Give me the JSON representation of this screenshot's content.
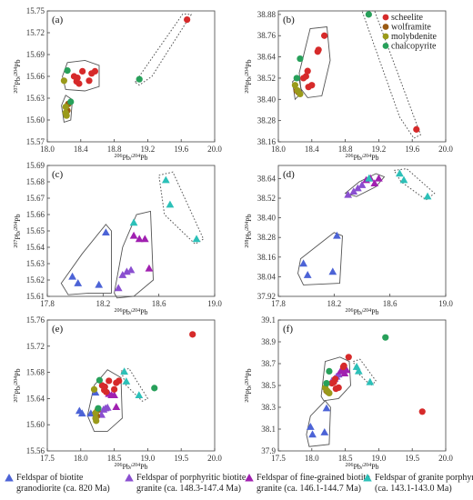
{
  "colors": {
    "scheelite": "#d62a2a",
    "wolframite": "#9a5a12",
    "molybdenite": "#9a9a1a",
    "chalcopyrite": "#27a05a",
    "biotite_granodiorite": "#4c63d6",
    "porphyritic_biotite_granite": "#8a4fd0",
    "fine_grained_biotite_granite": "#a020b0",
    "granite_porphyry": "#2cc0b8"
  },
  "legend_bottom": [
    {
      "key": "biotite_granodiorite",
      "line1": "Feldspar of biotite",
      "line2": "granodiorite (ca. 820 Ma)"
    },
    {
      "key": "porphyritic_biotite_granite",
      "line1": "Feldspar of porphyritic biotite",
      "line2": "granite (ca. 148.3-147.4 Ma)"
    },
    {
      "key": "fine_grained_biotite_granite",
      "line1": "Feldspar of fine-grained biotite",
      "line2": "granite (ca. 146.1-144.7 Ma)"
    },
    {
      "key": "granite_porphyry",
      "line1": "Feldspar of granite  porphyry",
      "line2": "(ca. 143.1-143.0 Ma)"
    }
  ],
  "chart_data": [
    {
      "panel": "(a)",
      "type": "scatter",
      "xlabel": "206Pb/204Pb",
      "ylabel": "207Pb/204Pb",
      "xlim": [
        18.0,
        20.0
      ],
      "ylim": [
        15.57,
        15.75
      ],
      "xticks": [
        "18.0",
        "18.4",
        "18.8",
        "19.2",
        "19.6",
        "20.0"
      ],
      "yticks": [
        "15.57",
        "15.60",
        "15.63",
        "15.66",
        "15.69",
        "15.72",
        "15.75"
      ],
      "series": [
        {
          "name": "scheelite",
          "marker": "circle",
          "x": [
            18.32,
            18.36,
            18.42,
            18.53,
            18.57,
            18.5,
            18.35,
            18.38,
            19.67
          ],
          "y": [
            15.66,
            15.658,
            15.667,
            15.664,
            15.667,
            15.654,
            15.653,
            15.65,
            15.738
          ]
        },
        {
          "name": "wolframite",
          "marker": "circle",
          "x": [
            18.25,
            18.24
          ],
          "y": [
            15.622,
            15.613
          ]
        },
        {
          "name": "molybdenite",
          "marker": "circle",
          "x": [
            18.2,
            18.22,
            18.22,
            18.23
          ],
          "y": [
            15.654,
            15.618,
            15.61,
            15.606
          ]
        },
        {
          "name": "chalcopyrite",
          "marker": "circle",
          "x": [
            18.24,
            18.28,
            19.1
          ],
          "y": [
            15.668,
            15.625,
            15.656
          ]
        }
      ]
    },
    {
      "panel": "(b)",
      "type": "scatter",
      "xlabel": "206Pb/204Pb",
      "ylabel": "208Pb/204Pb",
      "xlim": [
        18.0,
        20.0
      ],
      "ylim": [
        38.16,
        38.9
      ],
      "xticks": [
        "18.0",
        "18.4",
        "18.8",
        "19.2",
        "19.6",
        "20.0"
      ],
      "yticks": [
        "38.16",
        "38.28",
        "38.40",
        "38.52",
        "38.64",
        "38.76",
        "38.88"
      ],
      "legend": [
        "scheelite",
        "wolframite",
        "molybdenite",
        "chalcopyrite"
      ],
      "series": [
        {
          "name": "scheelite",
          "marker": "circle",
          "x": [
            18.55,
            18.48,
            18.47,
            18.35,
            18.33,
            18.36,
            18.3,
            18.4,
            19.65
          ],
          "y": [
            38.76,
            38.68,
            38.67,
            38.56,
            38.53,
            38.47,
            38.52,
            38.48,
            38.23
          ]
        },
        {
          "name": "wolframite",
          "marker": "circle",
          "x": [
            18.22,
            18.24
          ],
          "y": [
            38.45,
            38.44
          ]
        },
        {
          "name": "molybdenite",
          "marker": "circle",
          "x": [
            18.2,
            18.23,
            18.26
          ],
          "y": [
            38.48,
            38.45,
            38.43
          ]
        },
        {
          "name": "chalcopyrite",
          "marker": "circle",
          "x": [
            18.22,
            18.26,
            19.08
          ],
          "y": [
            38.52,
            38.63,
            38.88
          ]
        }
      ]
    },
    {
      "panel": "(c)",
      "type": "scatter",
      "xlabel": "206Pb/204Pb",
      "ylabel": "207Pb/204Pb",
      "xlim": [
        17.8,
        19.0
      ],
      "ylim": [
        15.61,
        15.69
      ],
      "xticks": [
        "17.8",
        "18.2",
        "18.6",
        "19.0"
      ],
      "yticks": [
        "15.61",
        "15.62",
        "15.63",
        "15.64",
        "15.65",
        "15.66",
        "15.67",
        "15.68",
        "15.69"
      ],
      "series": [
        {
          "name": "biotite_granodiorite",
          "marker": "triangle",
          "x": [
            17.98,
            18.02,
            18.17,
            18.22
          ],
          "y": [
            15.622,
            15.618,
            15.617,
            15.649
          ]
        },
        {
          "name": "porphyritic_biotite_granite",
          "marker": "triangle",
          "x": [
            18.31,
            18.34,
            18.37,
            18.4
          ],
          "y": [
            15.615,
            15.623,
            15.625,
            15.626
          ]
        },
        {
          "name": "fine_grained_biotite_granite",
          "marker": "triangle",
          "x": [
            18.42,
            18.46,
            18.5,
            18.53
          ],
          "y": [
            15.647,
            15.645,
            15.645,
            15.627
          ]
        },
        {
          "name": "granite_porphyry",
          "marker": "triangle",
          "x": [
            18.42,
            18.65,
            18.68,
            18.87
          ],
          "y": [
            15.655,
            15.681,
            15.666,
            15.645
          ]
        }
      ]
    },
    {
      "panel": "(d)",
      "type": "scatter",
      "xlabel": "206Pb/204Pb",
      "ylabel": "208Pb/204Pb",
      "xlim": [
        17.8,
        19.0
      ],
      "ylim": [
        37.92,
        38.72
      ],
      "xticks": [
        "17.8",
        "18.2",
        "18.6",
        "19.0"
      ],
      "yticks": [
        "37.92",
        "38.04",
        "38.16",
        "38.28",
        "38.40",
        "38.52",
        "38.64"
      ],
      "series": [
        {
          "name": "biotite_granodiorite",
          "marker": "triangle",
          "x": [
            17.98,
            18.01,
            18.19,
            18.22
          ],
          "y": [
            38.12,
            38.05,
            38.07,
            38.29
          ]
        },
        {
          "name": "porphyritic_biotite_granite",
          "marker": "triangle",
          "x": [
            18.3,
            18.34,
            18.37,
            18.4
          ],
          "y": [
            38.54,
            38.56,
            38.58,
            38.6
          ]
        },
        {
          "name": "fine_grained_biotite_granite",
          "marker": "triangle",
          "x": [
            18.43,
            18.46,
            18.49,
            18.52
          ],
          "y": [
            38.63,
            38.64,
            38.61,
            38.64
          ]
        },
        {
          "name": "granite_porphyry",
          "marker": "triangle",
          "x": [
            18.45,
            18.67,
            18.7,
            18.87
          ],
          "y": [
            38.64,
            38.67,
            38.63,
            38.53
          ]
        }
      ]
    },
    {
      "panel": "(e)",
      "type": "scatter",
      "xlabel": "206Pb/204Pb",
      "ylabel": "207Pb/204Pb",
      "xlim": [
        17.5,
        20.0
      ],
      "ylim": [
        15.56,
        15.76
      ],
      "xticks": [
        "17.5",
        "18.0",
        "18.5",
        "19.0",
        "19.5",
        "20.0"
      ],
      "yticks": [
        "15.56",
        "15.60",
        "15.64",
        "15.68",
        "15.72",
        "15.76"
      ],
      "series": [
        {
          "name": "biotite_granodiorite",
          "marker": "triangle",
          "x": [
            17.98,
            18.02,
            18.15,
            18.22
          ],
          "y": [
            15.621,
            15.617,
            15.617,
            15.649
          ]
        },
        {
          "name": "porphyritic_biotite_granite",
          "marker": "triangle",
          "x": [
            18.31,
            18.34,
            18.37,
            18.4
          ],
          "y": [
            15.615,
            15.623,
            15.625,
            15.626
          ]
        },
        {
          "name": "fine_grained_biotite_granite",
          "marker": "triangle",
          "x": [
            18.42,
            18.46,
            18.5,
            18.53
          ],
          "y": [
            15.647,
            15.645,
            15.645,
            15.627
          ]
        },
        {
          "name": "granite_porphyry",
          "marker": "triangle",
          "x": [
            18.65,
            18.68,
            18.87
          ],
          "y": [
            15.681,
            15.666,
            15.645
          ]
        },
        {
          "name": "scheelite",
          "marker": "circle",
          "x": [
            18.32,
            18.36,
            18.42,
            18.53,
            18.57,
            18.5,
            18.35,
            18.38,
            19.67
          ],
          "y": [
            15.66,
            15.658,
            15.667,
            15.664,
            15.667,
            15.654,
            15.653,
            15.65,
            15.738
          ]
        },
        {
          "name": "wolframite",
          "marker": "circle",
          "x": [
            18.25,
            18.24
          ],
          "y": [
            15.622,
            15.613
          ]
        },
        {
          "name": "molybdenite",
          "marker": "circle",
          "x": [
            18.2,
            18.22,
            18.22,
            18.23
          ],
          "y": [
            15.654,
            15.618,
            15.61,
            15.606
          ]
        },
        {
          "name": "chalcopyrite",
          "marker": "circle",
          "x": [
            18.28,
            18.26,
            19.1
          ],
          "y": [
            15.668,
            15.625,
            15.656
          ]
        }
      ]
    },
    {
      "panel": "(f)",
      "type": "scatter",
      "xlabel": "206Pb/204Pb",
      "ylabel": "208Pb/204Pb",
      "xlim": [
        17.5,
        20.0
      ],
      "ylim": [
        37.9,
        39.1
      ],
      "xticks": [
        "17.5",
        "18.0",
        "18.5",
        "19.0",
        "19.5",
        "20.0"
      ],
      "yticks": [
        "37.9",
        "38.1",
        "38.3",
        "38.5",
        "38.7",
        "38.9",
        "39.1"
      ],
      "series": [
        {
          "name": "biotite_granodiorite",
          "marker": "triangle",
          "x": [
            17.98,
            18.01,
            18.19,
            18.22
          ],
          "y": [
            38.12,
            38.05,
            38.07,
            38.29
          ]
        },
        {
          "name": "porphyritic_biotite_granite",
          "marker": "triangle",
          "x": [
            18.3,
            18.34,
            18.37,
            18.4
          ],
          "y": [
            38.54,
            38.56,
            38.58,
            38.6
          ]
        },
        {
          "name": "fine_grained_biotite_granite",
          "marker": "triangle",
          "x": [
            18.43,
            18.46,
            18.49,
            18.52
          ],
          "y": [
            38.63,
            38.64,
            38.61,
            38.64
          ]
        },
        {
          "name": "granite_porphyry",
          "marker": "triangle",
          "x": [
            18.67,
            18.7,
            18.87
          ],
          "y": [
            38.67,
            38.63,
            38.53
          ]
        },
        {
          "name": "scheelite",
          "marker": "circle",
          "x": [
            18.55,
            18.48,
            18.47,
            18.35,
            18.33,
            18.36,
            18.3,
            18.4,
            19.65
          ],
          "y": [
            38.76,
            38.68,
            38.67,
            38.56,
            38.53,
            38.47,
            38.52,
            38.48,
            38.26
          ]
        },
        {
          "name": "wolframite",
          "marker": "circle",
          "x": [
            18.22,
            18.24
          ],
          "y": [
            38.45,
            38.44
          ]
        },
        {
          "name": "molybdenite",
          "marker": "circle",
          "x": [
            18.2,
            18.23,
            18.26
          ],
          "y": [
            38.48,
            38.45,
            38.43
          ]
        },
        {
          "name": "chalcopyrite",
          "marker": "circle",
          "x": [
            18.22,
            18.26,
            19.1
          ],
          "y": [
            38.52,
            38.63,
            38.94
          ]
        }
      ]
    }
  ]
}
